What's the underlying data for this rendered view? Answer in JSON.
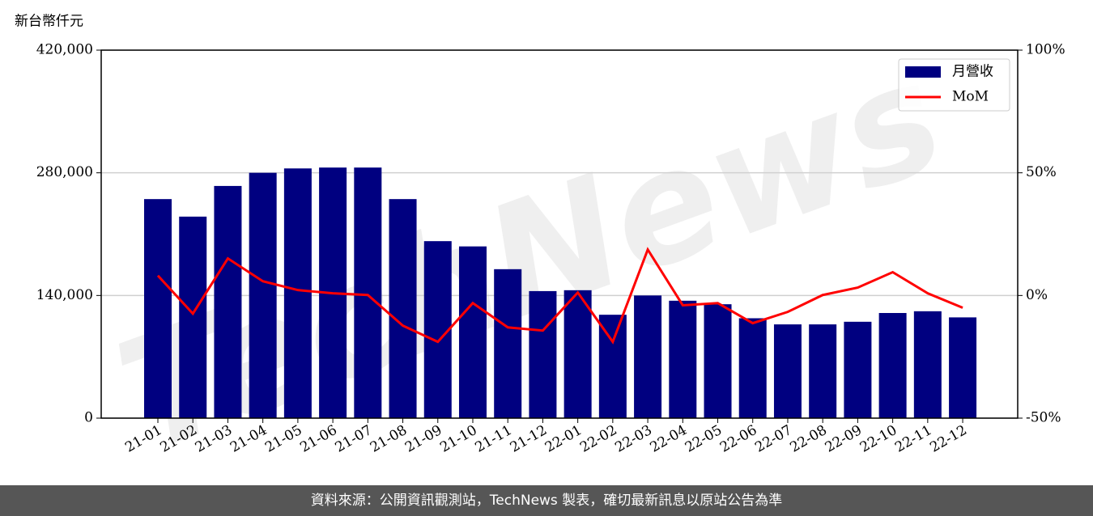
{
  "chart_data": {
    "type": "bar-line",
    "y_label": "新台幣仟元",
    "watermark": "TechNews",
    "footer": "資料來源：公開資訊觀測站，TechNews 製表，確切最新訊息以原站公告為準",
    "categories": [
      "21-01",
      "21-02",
      "21-03",
      "21-04",
      "21-05",
      "21-06",
      "21-07",
      "21-08",
      "21-09",
      "21-10",
      "21-11",
      "21-12",
      "22-01",
      "22-02",
      "22-03",
      "22-04",
      "22-05",
      "22-06",
      "22-07",
      "22-08",
      "22-09",
      "22-10",
      "22-11",
      "22-12"
    ],
    "series": [
      {
        "name": "月營收",
        "type": "bar",
        "color": "#000080",
        "values": [
          250000,
          230000,
          265000,
          280000,
          285000,
          286000,
          286000,
          250000,
          202000,
          196000,
          170000,
          145000,
          146000,
          118000,
          140000,
          134000,
          130000,
          114000,
          107000,
          107000,
          110000,
          120000,
          122000,
          115000
        ]
      },
      {
        "name": "MoM",
        "type": "line",
        "axis": "y2",
        "color": "#ff0000",
        "values": [
          8.1,
          -7.4,
          15.1,
          5.8,
          2.2,
          0.9,
          0.2,
          -12.3,
          -18.9,
          -3.1,
          -13.0,
          -14.3,
          1.2,
          -18.9,
          18.7,
          -4.0,
          -3.1,
          -11.3,
          -6.7,
          0.2,
          3.2,
          9.5,
          0.9,
          -5.0
        ]
      }
    ],
    "ylim": [
      0,
      420000
    ],
    "yticks": [
      0,
      {
        "value": 140000,
        "label": "140,000"
      },
      {
        "value": 280000,
        "label": "280,000"
      },
      {
        "value": 420000,
        "label": "420,000"
      }
    ],
    "y2lim": [
      -50,
      100
    ],
    "y2ticks": [
      {
        "value": -50,
        "label": "-50%"
      },
      {
        "value": 0,
        "label": "0%"
      },
      {
        "value": 50,
        "label": "50%"
      },
      {
        "value": 100,
        "label": "100%"
      }
    ],
    "grid": true,
    "legend": "upper right"
  }
}
